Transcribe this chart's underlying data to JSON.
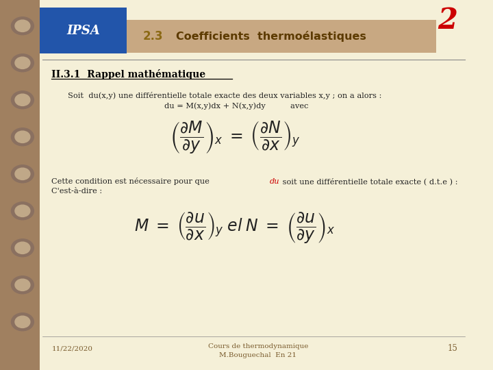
{
  "bg_color": "#f5f0d8",
  "header_bg": "#c8a882",
  "header_number": "2.3",
  "header_title": "Coefficients  thermoélastiques",
  "header_number_color": "#8b6914",
  "header_title_color": "#5c3a00",
  "section_title": "II.3.1  Rappel mathématique",
  "section_title_color": "#000000",
  "body_color": "#222222",
  "red_color": "#cc0000",
  "corner_number": "2",
  "corner_color": "#cc0000",
  "footer_date": "11/22/2020",
  "footer_center1": "Cours de thermodynamique",
  "footer_center2": "M.Bouguechal  En 21",
  "footer_page": "15",
  "footer_color": "#7a5c2e",
  "line1": "Soit  du(x,y) une différentielle totale exacte des deux variables x,y ; on a alors :",
  "line2": "du = M(x,y)dx + N(x,y)dy          avec",
  "cond_line1a": "Cette condition est nécessaire pour que ",
  "cond_du": "du",
  "cond_line1b": " soit une différentielle totale exacte ( d.t.e ) :",
  "cond_line2": "C'est-à-dire :",
  "left_strip_color": "#a08060",
  "spiral_outer": "#8a7060",
  "spiral_inner": "#c0a888",
  "logo_bg": "#2255aa",
  "underline_color": "#000000",
  "hline_color": "#888888"
}
